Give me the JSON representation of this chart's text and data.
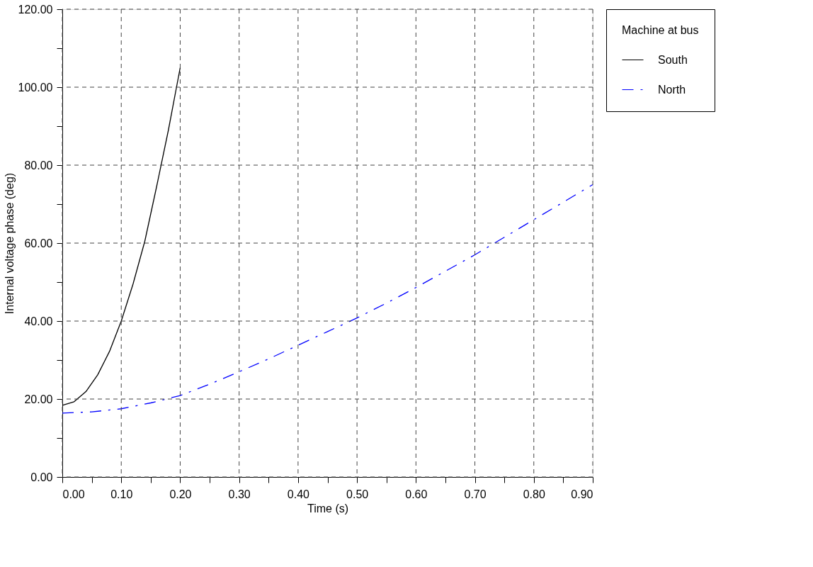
{
  "chart_data": {
    "type": "line",
    "xlabel": "Time (s)",
    "ylabel": "Internal voltage phase (deg)",
    "legend_title": "Machine at bus",
    "series": [
      {
        "name": "South",
        "color": "#000000",
        "line_style": "solid",
        "x": [
          0,
          0.02,
          0.04,
          0.06,
          0.08,
          0.1,
          0.12,
          0.14,
          0.16,
          0.18,
          0.2
        ],
        "values": [
          18.4,
          19.3,
          21.9,
          26.2,
          32.2,
          40.0,
          49.5,
          60.5,
          74.5,
          89,
          105
        ]
      },
      {
        "name": "North",
        "color": "#0000ff",
        "line_style": "dashed",
        "x": [
          0,
          0.05,
          0.1,
          0.15,
          0.2,
          0.25,
          0.3,
          0.35,
          0.4,
          0.45,
          0.5,
          0.55,
          0.6,
          0.65,
          0.7,
          0.75,
          0.8,
          0.85,
          0.9
        ],
        "values": [
          16.4,
          16.7,
          17.5,
          19.0,
          20.9,
          23.8,
          27.0,
          30.3,
          33.8,
          37.3,
          40.8,
          44.6,
          48.6,
          52.8,
          57.0,
          61.5,
          66.0,
          70.5,
          75.0
        ]
      }
    ],
    "xlim": [
      0,
      0.9
    ],
    "ylim": [
      0,
      120
    ],
    "xticks": [
      {
        "value": 0,
        "label": "0.00"
      },
      {
        "value": 0.05,
        "label": null
      },
      {
        "value": 0.1,
        "label": "0.10"
      },
      {
        "value": 0.15,
        "label": null
      },
      {
        "value": 0.2,
        "label": "0.20"
      },
      {
        "value": 0.25,
        "label": null
      },
      {
        "value": 0.3,
        "label": "0.30"
      },
      {
        "value": 0.35,
        "label": null
      },
      {
        "value": 0.4,
        "label": "0.40"
      },
      {
        "value": 0.45,
        "label": null
      },
      {
        "value": 0.5,
        "label": "0.50"
      },
      {
        "value": 0.55,
        "label": null
      },
      {
        "value": 0.6,
        "label": "0.60"
      },
      {
        "value": 0.65,
        "label": null
      },
      {
        "value": 0.7,
        "label": "0.70"
      },
      {
        "value": 0.75,
        "label": null
      },
      {
        "value": 0.8,
        "label": "0.80"
      },
      {
        "value": 0.85,
        "label": null
      },
      {
        "value": 0.9,
        "label": "0.90"
      }
    ],
    "yticks": [
      {
        "value": 0,
        "label": "0.00"
      },
      {
        "value": 10,
        "label": null
      },
      {
        "value": 20,
        "label": "20.00"
      },
      {
        "value": 30,
        "label": null
      },
      {
        "value": 40,
        "label": "40.00"
      },
      {
        "value": 50,
        "label": null
      },
      {
        "value": 60,
        "label": "60.00"
      },
      {
        "value": 70,
        "label": null
      },
      {
        "value": 80,
        "label": "80.00"
      },
      {
        "value": 90,
        "label": null
      },
      {
        "value": 100,
        "label": "100.00"
      },
      {
        "value": 110,
        "label": null
      },
      {
        "value": 120,
        "label": "120.00"
      }
    ],
    "grid": true,
    "legend": "top right",
    "marker": "none"
  }
}
